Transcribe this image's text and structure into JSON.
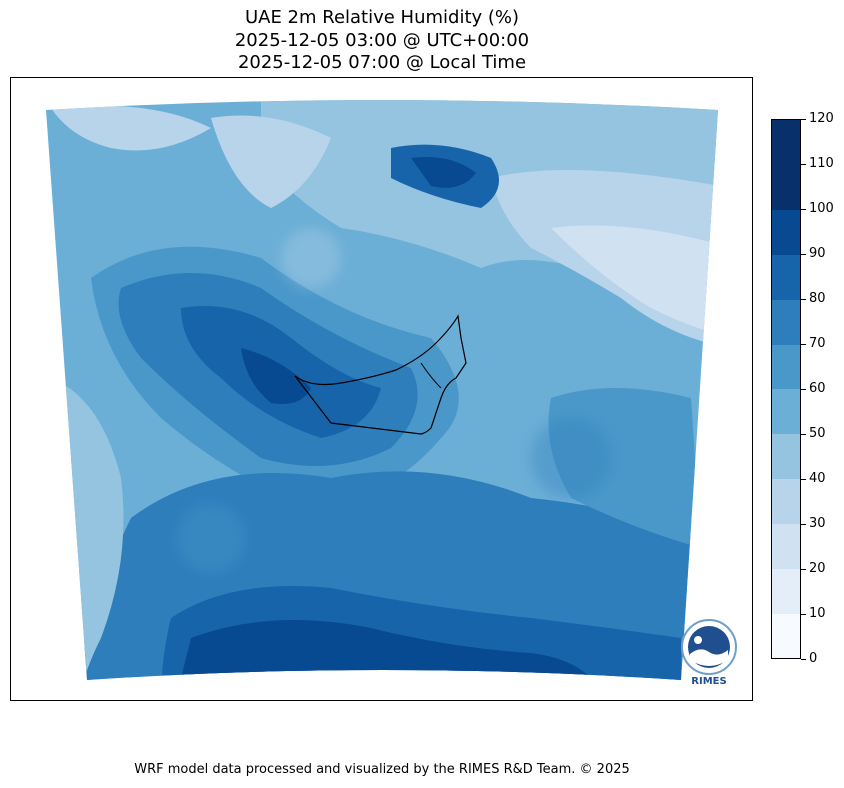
{
  "title": {
    "line1": "UAE 2m Relative Humidity (%)",
    "line2": "2025-12-05 03:00 @ UTC+00:00",
    "line3": "2025-12-05 07:00 @ Local Time"
  },
  "colorbar": {
    "ticks": [
      "0",
      "10",
      "20",
      "30",
      "40",
      "50",
      "60",
      "70",
      "80",
      "90",
      "100",
      "110",
      "120"
    ],
    "colors": [
      "#f7fbff",
      "#e3eef9",
      "#d0e1f2",
      "#b7d4ea",
      "#94c4df",
      "#6baed6",
      "#4a98c9",
      "#2e7ebc",
      "#1764ab",
      "#084a91",
      "#08306b",
      "#08306b"
    ]
  },
  "logo": {
    "text": "RIMES"
  },
  "footer": {
    "credit": "WRF model data processed and visualized by the RIMES R&D Team. © 2025"
  }
}
